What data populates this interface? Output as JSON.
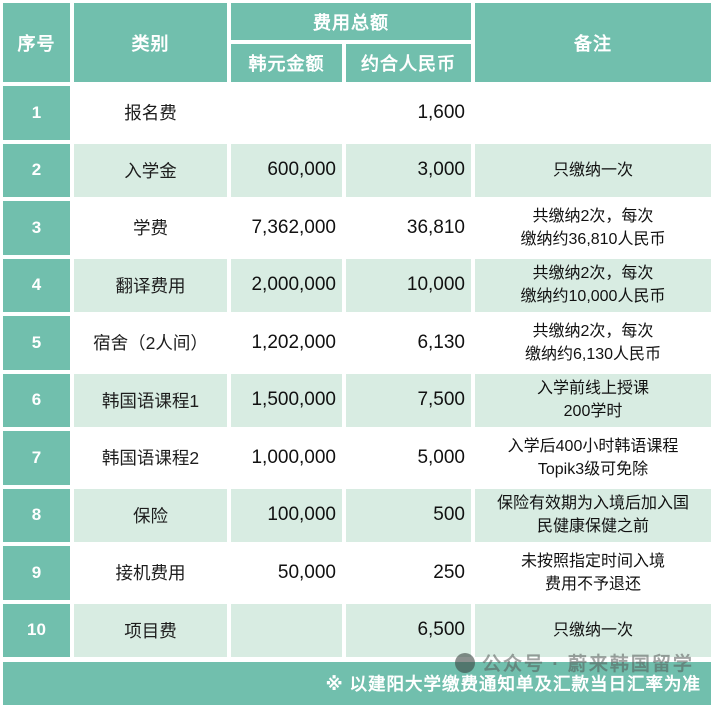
{
  "table": {
    "headers": {
      "index": "序号",
      "category": "类别",
      "fee_group": "费用总额",
      "krw": "韩元金额",
      "rmb": "约合人民币",
      "notes": "备注"
    },
    "rows": [
      {
        "index": "1",
        "category": "报名费",
        "krw": "",
        "rmb": "1,600",
        "note": ""
      },
      {
        "index": "2",
        "category": "入学金",
        "krw": "600,000",
        "rmb": "3,000",
        "note": "只缴纳一次"
      },
      {
        "index": "3",
        "category": "学费",
        "krw": "7,362,000",
        "rmb": "36,810",
        "note": "共缴纳2次，每次\n缴纳约36,810人民币"
      },
      {
        "index": "4",
        "category": "翻译费用",
        "krw": "2,000,000",
        "rmb": "10,000",
        "note": "共缴纳2次，每次\n缴纳约10,000人民币"
      },
      {
        "index": "5",
        "category": "宿舍（2人间）",
        "krw": "1,202,000",
        "rmb": "6,130",
        "note": "共缴纳2次，每次\n缴纳约6,130人民币"
      },
      {
        "index": "6",
        "category": "韩国语课程1",
        "krw": "1,500,000",
        "rmb": "7,500",
        "note": "入学前线上授课\n200学时"
      },
      {
        "index": "7",
        "category": "韩国语课程2",
        "krw": "1,000,000",
        "rmb": "5,000",
        "note": "入学后400小时韩语课程\nTopik3级可免除"
      },
      {
        "index": "8",
        "category": "保险",
        "krw": "100,000",
        "rmb": "500",
        "note": "保险有效期为入境后加入国\n民健康保健之前"
      },
      {
        "index": "9",
        "category": "接机费用",
        "krw": "50,000",
        "rmb": "250",
        "note": "未按照指定时间入境\n费用不予退还"
      },
      {
        "index": "10",
        "category": "项目费",
        "krw": "",
        "rmb": "6,500",
        "note": "只缴纳一次"
      }
    ]
  },
  "footer": {
    "note": "※ 以建阳大学缴费通知单及汇款当日汇率为准"
  },
  "watermark": {
    "text": "公众号 · 蔚来韩国留学"
  },
  "colors": {
    "teal": "#71bfad",
    "row_light_green": "#d8ece2",
    "row_white": "#ffffff",
    "header_text": "#ffffff",
    "body_text": "#111111"
  }
}
